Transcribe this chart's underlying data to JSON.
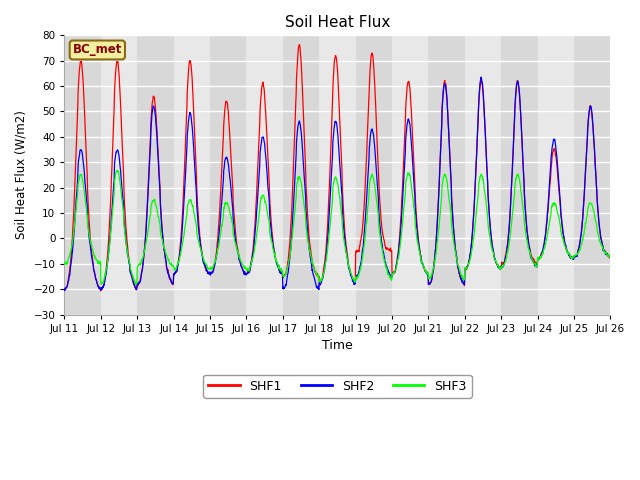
{
  "title": "Soil Heat Flux",
  "xlabel": "Time",
  "ylabel": "Soil Heat Flux (W/m2)",
  "ylim": [
    -30,
    80
  ],
  "yticks": [
    -30,
    -20,
    -10,
    0,
    10,
    20,
    30,
    40,
    50,
    60,
    70,
    80
  ],
  "fig_bg_color": "#ffffff",
  "plot_bg_color": "#e8e8e8",
  "band_colors": [
    "#d8d8d8",
    "#e8e8e8"
  ],
  "grid_color": "#ffffff",
  "annotation_text": "BC_met",
  "annotation_color": "#8B0000",
  "annotation_bg": "#f0f0a0",
  "annotation_border": "#8B6914",
  "line_colors": {
    "SHF1": "red",
    "SHF2": "blue",
    "SHF3": "lime"
  },
  "n_days": 15,
  "start_day": 11,
  "points_per_day": 96,
  "peaks_SHF1": [
    70,
    70,
    56,
    70,
    54,
    61,
    76,
    72,
    73,
    62,
    62,
    62,
    62,
    35,
    52
  ],
  "peaks_SHF2": [
    35,
    35,
    52,
    49,
    32,
    40,
    46,
    46,
    43,
    47,
    61,
    63,
    62,
    39,
    52
  ],
  "peaks_SHF3": [
    25,
    27,
    15,
    15,
    14,
    17,
    24,
    24,
    25,
    26,
    25,
    25,
    25,
    14,
    14
  ],
  "troughs_SHF1": [
    -20,
    -20,
    -18,
    -14,
    -14,
    -14,
    -15,
    -17,
    -5,
    -14,
    -18,
    -12,
    -10,
    -8,
    -7
  ],
  "troughs_SHF2": [
    -20,
    -20,
    -18,
    -14,
    -14,
    -14,
    -20,
    -18,
    -15,
    -14,
    -18,
    -12,
    -11,
    -8,
    -7
  ],
  "troughs_SHF3": [
    -10,
    -18,
    -11,
    -12,
    -12,
    -13,
    -15,
    -17,
    -16,
    -14,
    -16,
    -12,
    -11,
    -8,
    -7
  ]
}
